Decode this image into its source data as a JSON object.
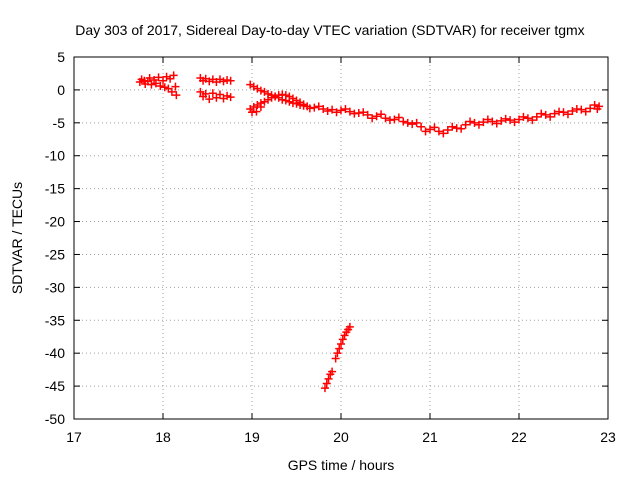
{
  "chart_data": {
    "type": "scatter",
    "title": "Day 303 of 2017, Sidereal Day-to-day VTEC variation (SDTVAR) for receiver tgmx",
    "xlabel": "GPS time / hours",
    "ylabel": "SDTVAR / TECUs",
    "xlim": [
      17,
      23
    ],
    "ylim": [
      -50,
      5
    ],
    "xticks": [
      "17",
      "18",
      "19",
      "20",
      "21",
      "22",
      "23"
    ],
    "yticks": [
      "5",
      "0",
      "-5",
      "-10",
      "-15",
      "-20",
      "-25",
      "-30",
      "-35",
      "-40",
      "-45",
      "-50"
    ],
    "grid": true,
    "marker": "plus",
    "color": "#ff0000",
    "series": [
      {
        "values": [
          [
            17.74,
            1.2
          ],
          [
            17.76,
            1.6
          ],
          [
            17.79,
            1.4
          ],
          [
            17.8,
            0.9
          ],
          [
            17.83,
            1.3
          ],
          [
            17.85,
            1.8
          ],
          [
            17.87,
            0.8
          ],
          [
            17.9,
            1.5
          ],
          [
            17.92,
            1.0
          ],
          [
            17.95,
            1.9
          ],
          [
            17.97,
            0.6
          ],
          [
            18.0,
            1.4
          ],
          [
            18.02,
            0.4
          ],
          [
            18.04,
            2.0
          ],
          [
            18.06,
            0.2
          ],
          [
            18.08,
            1.7
          ],
          [
            18.1,
            -0.3
          ],
          [
            18.12,
            2.2
          ],
          [
            18.14,
            0.5
          ],
          [
            18.15,
            -0.8
          ],
          [
            18.42,
            1.8
          ],
          [
            18.45,
            1.4
          ],
          [
            18.48,
            1.7
          ],
          [
            18.52,
            1.3
          ],
          [
            18.56,
            1.6
          ],
          [
            18.6,
            1.2
          ],
          [
            18.64,
            1.6
          ],
          [
            18.68,
            1.3
          ],
          [
            18.72,
            1.5
          ],
          [
            18.76,
            1.4
          ],
          [
            18.42,
            -0.3
          ],
          [
            18.45,
            -1.0
          ],
          [
            18.48,
            -0.6
          ],
          [
            18.52,
            -1.4
          ],
          [
            18.56,
            -0.5
          ],
          [
            18.6,
            -1.2
          ],
          [
            18.64,
            -0.7
          ],
          [
            18.68,
            -1.3
          ],
          [
            18.72,
            -0.9
          ],
          [
            18.76,
            -1.1
          ],
          [
            18.98,
            0.8
          ],
          [
            19.02,
            0.5
          ],
          [
            19.06,
            0.2
          ],
          [
            19.1,
            -0.1
          ],
          [
            19.14,
            -0.3
          ],
          [
            19.18,
            -0.6
          ],
          [
            19.22,
            -0.8
          ],
          [
            19.26,
            -1.0
          ],
          [
            19.3,
            -1.2
          ],
          [
            19.34,
            -1.5
          ],
          [
            19.38,
            -1.6
          ],
          [
            19.42,
            -1.8
          ],
          [
            19.46,
            -2.0
          ],
          [
            19.5,
            -2.1
          ],
          [
            19.54,
            -2.3
          ],
          [
            19.58,
            -2.4
          ],
          [
            18.98,
            -2.9
          ],
          [
            19.02,
            -2.6
          ],
          [
            19.06,
            -2.3
          ],
          [
            19.1,
            -2.0
          ],
          [
            19.14,
            -1.8
          ],
          [
            19.18,
            -1.5
          ],
          [
            19.22,
            -1.2
          ],
          [
            19.26,
            -1.0
          ],
          [
            19.3,
            -0.8
          ],
          [
            19.34,
            -0.7
          ],
          [
            19.38,
            -0.8
          ],
          [
            19.42,
            -1.0
          ],
          [
            19.46,
            -1.3
          ],
          [
            19.5,
            -1.6
          ],
          [
            19.54,
            -1.9
          ],
          [
            19.58,
            -2.2
          ],
          [
            19.05,
            -3.3
          ],
          [
            19.1,
            -2.6
          ],
          [
            19.0,
            -3.4
          ],
          [
            19.62,
            -2.5
          ],
          [
            19.7,
            -2.7
          ],
          [
            19.8,
            -2.9
          ],
          [
            19.9,
            -3.0
          ],
          [
            20.0,
            -3.1
          ],
          [
            20.1,
            -3.3
          ],
          [
            20.2,
            -3.5
          ],
          [
            20.3,
            -3.8
          ],
          [
            20.4,
            -4.0
          ],
          [
            20.5,
            -4.3
          ],
          [
            20.6,
            -4.5
          ],
          [
            20.7,
            -4.8
          ],
          [
            20.8,
            -5.2
          ],
          [
            20.9,
            -5.6
          ],
          [
            21.0,
            -6.0
          ],
          [
            21.1,
            -6.3
          ],
          [
            21.2,
            -6.1
          ],
          [
            21.3,
            -5.8
          ],
          [
            21.4,
            -5.3
          ],
          [
            21.5,
            -5.0
          ],
          [
            21.6,
            -4.9
          ],
          [
            21.7,
            -4.8
          ],
          [
            21.8,
            -4.7
          ],
          [
            21.9,
            -4.6
          ],
          [
            22.0,
            -4.5
          ],
          [
            22.1,
            -4.3
          ],
          [
            22.2,
            -4.1
          ],
          [
            22.3,
            -3.8
          ],
          [
            22.4,
            -3.6
          ],
          [
            22.5,
            -3.4
          ],
          [
            22.6,
            -3.2
          ],
          [
            22.7,
            -3.0
          ],
          [
            22.8,
            -2.8
          ],
          [
            22.9,
            -2.5
          ],
          [
            19.65,
            -2.8
          ],
          [
            19.75,
            -2.5
          ],
          [
            19.85,
            -3.2
          ],
          [
            19.95,
            -3.4
          ],
          [
            20.05,
            -2.9
          ],
          [
            20.15,
            -3.6
          ],
          [
            20.25,
            -3.4
          ],
          [
            20.35,
            -4.3
          ],
          [
            20.45,
            -3.7
          ],
          [
            20.55,
            -4.6
          ],
          [
            20.65,
            -4.2
          ],
          [
            20.75,
            -5.0
          ],
          [
            20.85,
            -5.0
          ],
          [
            20.95,
            -6.3
          ],
          [
            21.05,
            -5.7
          ],
          [
            21.15,
            -6.6
          ],
          [
            21.25,
            -5.6
          ],
          [
            21.35,
            -5.9
          ],
          [
            21.45,
            -4.8
          ],
          [
            21.55,
            -5.3
          ],
          [
            21.65,
            -4.5
          ],
          [
            21.75,
            -5.1
          ],
          [
            21.85,
            -4.4
          ],
          [
            21.95,
            -4.9
          ],
          [
            22.05,
            -4.1
          ],
          [
            22.15,
            -4.6
          ],
          [
            22.25,
            -3.6
          ],
          [
            22.35,
            -4.1
          ],
          [
            22.45,
            -3.3
          ],
          [
            22.55,
            -3.7
          ],
          [
            22.65,
            -2.9
          ],
          [
            22.75,
            -3.3
          ],
          [
            22.85,
            -2.3
          ],
          [
            22.88,
            -2.9
          ],
          [
            19.82,
            -45.3
          ],
          [
            19.84,
            -44.6
          ],
          [
            19.86,
            -43.9
          ],
          [
            19.88,
            -43.2
          ],
          [
            19.9,
            -42.8
          ],
          [
            19.94,
            -40.8
          ],
          [
            19.96,
            -40.0
          ],
          [
            19.98,
            -39.3
          ],
          [
            20.0,
            -38.6
          ],
          [
            20.02,
            -37.9
          ],
          [
            20.04,
            -37.3
          ],
          [
            20.06,
            -36.8
          ],
          [
            20.08,
            -36.4
          ],
          [
            20.1,
            -36.0
          ]
        ]
      }
    ]
  }
}
